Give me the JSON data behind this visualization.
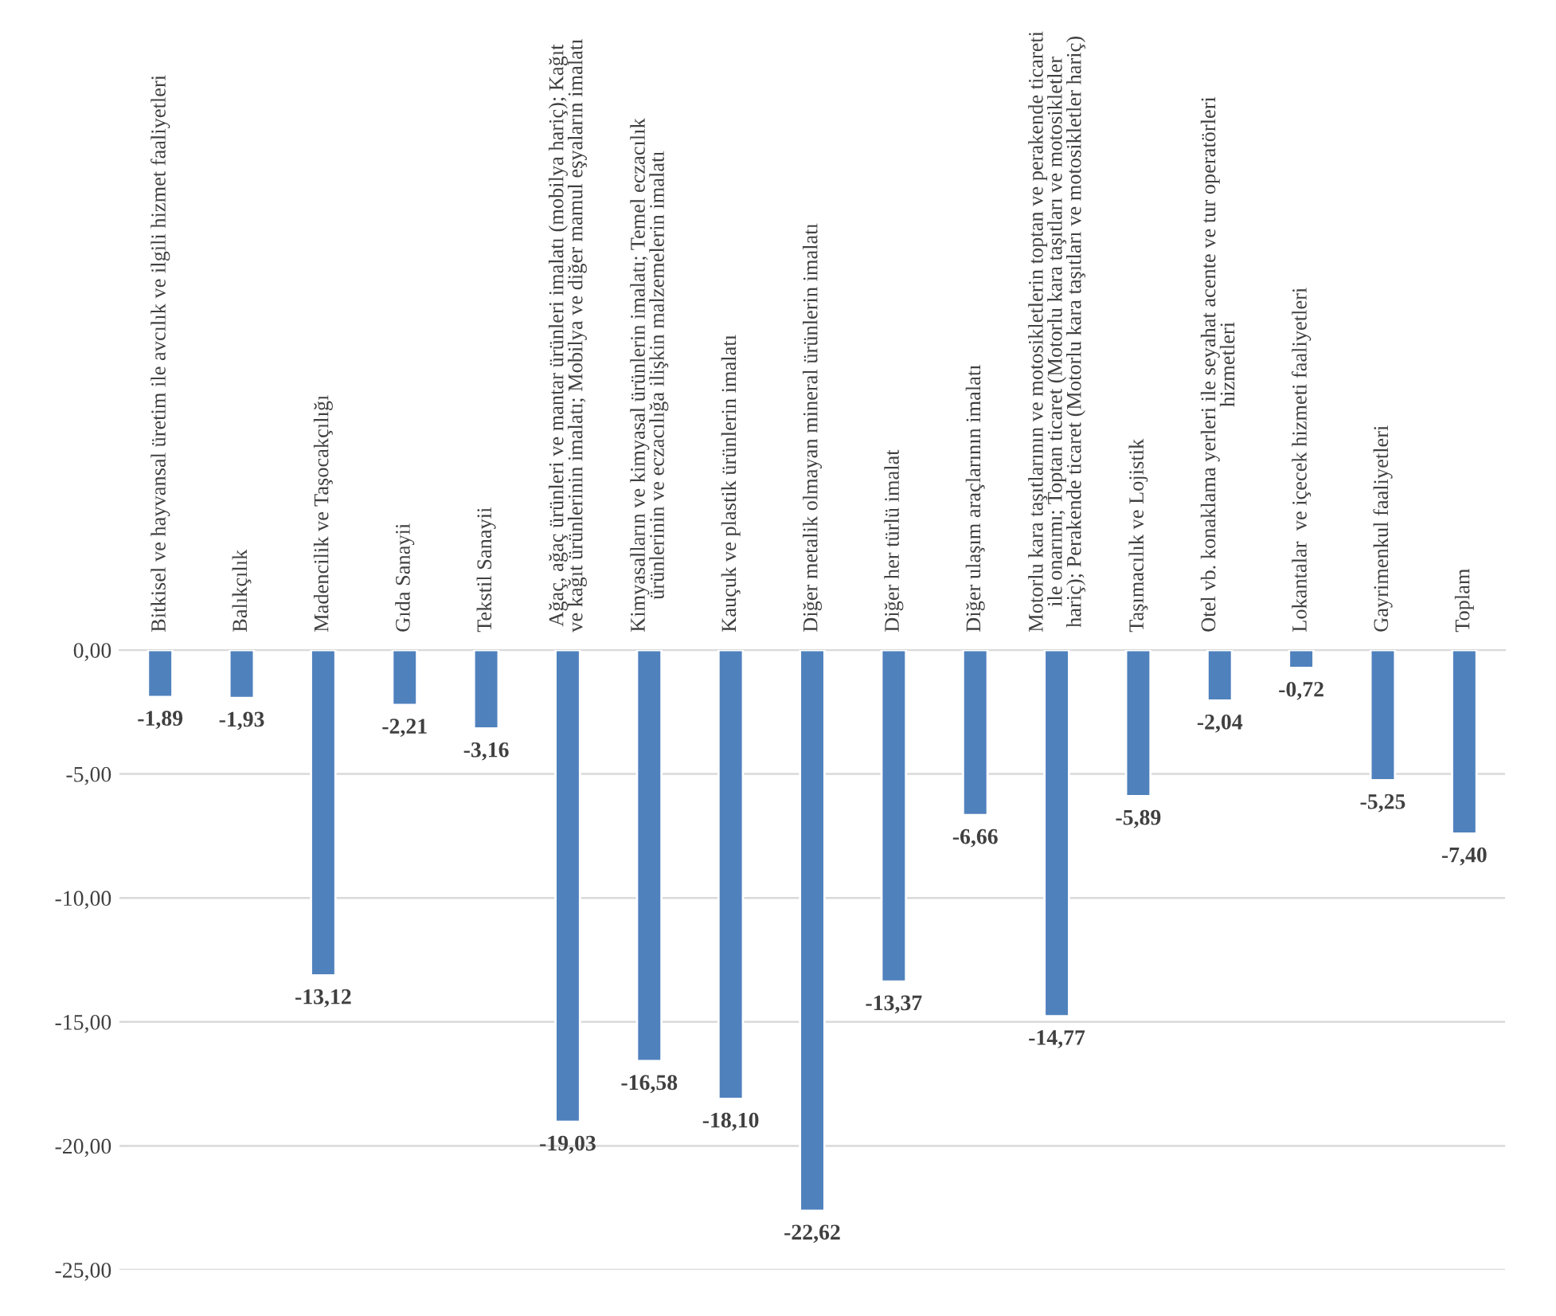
{
  "chart_data": {
    "type": "bar",
    "categories": [
      "Bitkisel ve hayvansal üretim ile avcılık ve ilgili hizmet faaliyetleri",
      "Balıkçılık",
      "Madencilik ve Taşocakçılığı",
      "Gıda Sanayii",
      "Tekstil Sanayii",
      "Ağaç, ağaç ürünleri ve mantar ürünleri imalatı (mobilya hariç); Kağıt\nve kağıt ürünlerinin imalatı; Mobilya ve diğer mamul eşyaların imalatı",
      "Kimyasalların ve kimyasal ürünlerin imalatı; Temel eczacılık\nürünlerinin ve eczacılığa ilişkin malzemelerin imalatı",
      "Kauçuk ve plastik ürünlerin imalatı",
      "Diğer metalik olmayan mineral ürünlerin imalatı",
      "Diğer her türlü imalat",
      "Diğer ulaşım araçlarının imalatı",
      "Motorlu kara taşıtlarının ve motosikletlerin toptan ve perakende ticareti\nile onarımı; Toptan ticaret (Motorlu kara taşıtları ve motosikletler\nhariç); Perakende ticaret (Motorlu kara taşıtları ve motosikletler hariç)",
      "Taşımacılık ve Lojistik",
      "Otel vb. konaklama yerleri ile seyahat acente ve tur operatörleri\nhizmetleri",
      "Lokantalar  ve içecek hizmeti faaliyetleri",
      "Gayrimenkul faaliyetleri",
      "Toplam"
    ],
    "values": [
      -1.89,
      -1.93,
      -13.12,
      -2.21,
      -3.16,
      -19.03,
      -16.58,
      -18.1,
      -22.62,
      -13.37,
      -6.66,
      -14.77,
      -5.89,
      -2.04,
      -0.72,
      -5.25,
      -7.4
    ],
    "value_labels": [
      "-1,89",
      "-1,93",
      "-13,12",
      "-2,21",
      "-3,16",
      "-19,03",
      "-16,58",
      "-18,10",
      "-22,62",
      "-13,37",
      "-6,66",
      "-14,77",
      "-5,89",
      "-2,04",
      "-0,72",
      "-5,25",
      "-7,40"
    ],
    "color": "#4f81bd",
    "ylim": [
      -25,
      0
    ],
    "yticks": [
      {
        "value": 0,
        "label": "0,00"
      },
      {
        "value": -5,
        "label": "-5,00"
      },
      {
        "value": -10,
        "label": "-10,00"
      },
      {
        "value": -15,
        "label": "-15,00"
      },
      {
        "value": -20,
        "label": "-20,00"
      },
      {
        "value": -25,
        "label": "-25,00"
      }
    ],
    "grid": "y",
    "legend": false
  }
}
